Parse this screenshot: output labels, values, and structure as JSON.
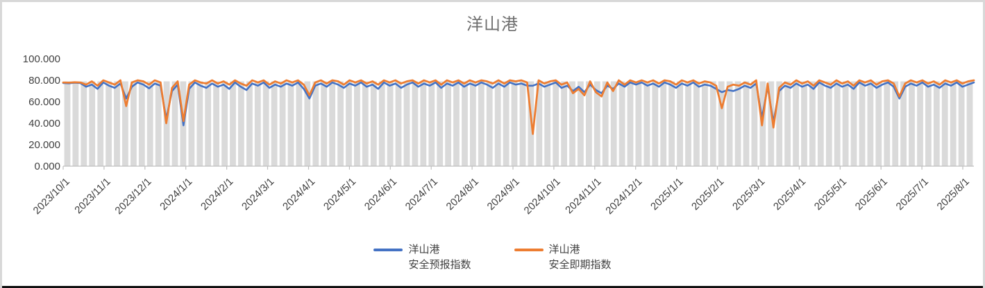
{
  "title": "洋山港",
  "colors": {
    "forecast": "#4472C4",
    "spot": "#ED7D31",
    "background_bars": "#DADADA",
    "axis": "#BFBFBF",
    "tick_text": "#3f3f3f",
    "title_text": "#6e6e6e",
    "frame_border": "#d8d8d8",
    "bottom_edge": "#101010"
  },
  "legend": [
    {
      "line1": "洋山港",
      "line2": "安全预报指数",
      "color_key": "forecast"
    },
    {
      "line1": "洋山港",
      "line2": "安全即期指数",
      "color_key": "spot"
    }
  ],
  "chart_data": {
    "type": "line",
    "title": "洋山港",
    "xlabel": "",
    "ylabel": "",
    "ylim": [
      0,
      100
    ],
    "grid": false,
    "legend_position": "bottom",
    "y_axis": {
      "ticks": [
        0,
        20,
        40,
        60,
        80,
        100
      ],
      "labels": [
        "0.000",
        "20.000",
        "40.000",
        "60.000",
        "80.000",
        "100.000"
      ]
    },
    "x_axis": {
      "labels": [
        "2023/10/1",
        "2023/11/1",
        "2023/12/1",
        "2024/1/1",
        "2024/2/1",
        "2024/3/1",
        "2024/4/1",
        "2024/5/1",
        "2024/6/1",
        "2024/7/1",
        "2024/8/1",
        "2024/9/1",
        "2024/10/1",
        "2024/11/1",
        "2024/12/1",
        "2025/1/1",
        "2025/2/1",
        "2025/3/1",
        "2025/4/1",
        "2025/5/1",
        "2025/6/1",
        "2025/7/1",
        "2025/8/1"
      ],
      "label_rotation_deg": -45
    },
    "background_bars": {
      "value": 79,
      "count": 110
    },
    "series": [
      {
        "name": "洋山港安全预报指数",
        "color_key": "forecast",
        "values": [
          77.5,
          77.2,
          77.8,
          77.4,
          74,
          76,
          72,
          78,
          75,
          73,
          77,
          63,
          74,
          78,
          76,
          72.5,
          77,
          75,
          44,
          70,
          76,
          38,
          72,
          78,
          75,
          73,
          77,
          74,
          76,
          72,
          78,
          74,
          71,
          77,
          75,
          78,
          73,
          76,
          74,
          77,
          75,
          78,
          72,
          63,
          75,
          77,
          74,
          78,
          76,
          73,
          77,
          75,
          78,
          74,
          76,
          72,
          78,
          75,
          77,
          73,
          76,
          78,
          74,
          77,
          75,
          78,
          73,
          77,
          75,
          78,
          74,
          77,
          75,
          78,
          76,
          73,
          77,
          74,
          78,
          76,
          77,
          75,
          75,
          77,
          74,
          76,
          78,
          73,
          75,
          70,
          74,
          69,
          76,
          71,
          68,
          75,
          72,
          77,
          74,
          78,
          76,
          78,
          75,
          77,
          74,
          78,
          76,
          73,
          77,
          75,
          78,
          74,
          76,
          75,
          72,
          69,
          71,
          70,
          72,
          75,
          73,
          77,
          45,
          74,
          41,
          70,
          75,
          73,
          77,
          74,
          76,
          72,
          78,
          75,
          73,
          77,
          74,
          76,
          72,
          78,
          75,
          77,
          73,
          76,
          78,
          74,
          63,
          74,
          77,
          75,
          78,
          74,
          76,
          73,
          77,
          75,
          78,
          74,
          76,
          78
        ]
      },
      {
        "name": "洋山港安全即期指数",
        "color_key": "spot",
        "values": [
          78,
          77.8,
          78.2,
          78,
          76,
          79,
          75,
          80,
          78,
          76,
          80,
          56,
          78,
          80,
          79,
          76,
          80,
          78,
          40,
          73,
          79,
          42,
          76,
          80,
          78,
          77,
          80,
          77,
          79,
          76,
          80,
          77,
          75,
          80,
          78,
          80,
          76,
          79,
          77,
          80,
          78,
          80,
          76,
          66,
          78,
          80,
          77,
          80,
          79,
          76,
          80,
          78,
          80,
          77,
          79,
          76,
          80,
          78,
          80,
          77,
          79,
          80,
          77,
          80,
          78,
          80,
          76,
          80,
          78,
          80,
          77,
          80,
          78,
          80,
          79,
          77,
          80,
          77,
          80,
          79,
          80,
          78,
          30,
          80,
          77,
          79,
          80,
          76,
          78,
          68,
          72,
          66,
          79,
          69,
          65,
          78,
          70,
          80,
          76,
          80,
          78,
          80,
          78,
          80,
          77,
          80,
          79,
          76,
          80,
          78,
          80,
          77,
          79,
          78,
          75,
          54,
          74,
          76,
          75,
          78,
          76,
          80,
          38,
          77,
          36,
          73,
          78,
          76,
          80,
          77,
          79,
          75,
          80,
          78,
          76,
          80,
          77,
          79,
          75,
          80,
          78,
          80,
          76,
          79,
          80,
          77,
          65,
          77,
          80,
          78,
          80,
          77,
          79,
          76,
          80,
          78,
          80,
          77,
          79,
          80
        ]
      }
    ]
  }
}
